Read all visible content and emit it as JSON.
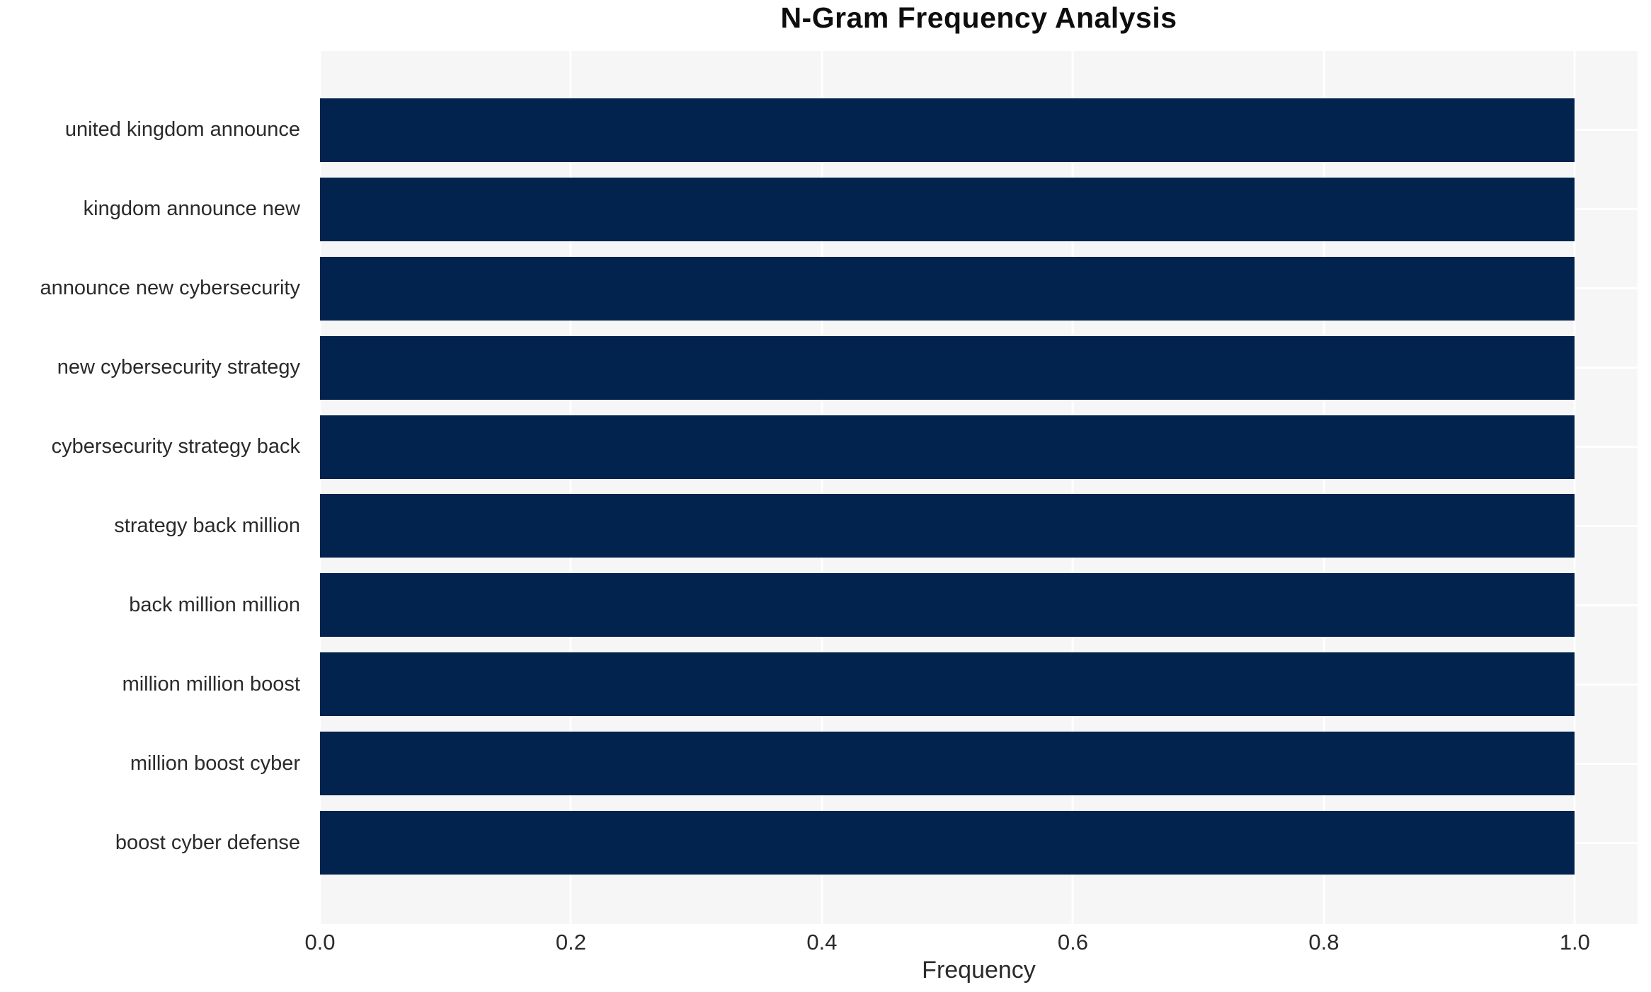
{
  "chart_data": {
    "type": "bar",
    "orientation": "horizontal",
    "title": "N-Gram Frequency Analysis",
    "xlabel": "Frequency",
    "ylabel": "",
    "categories": [
      "united kingdom announce",
      "kingdom announce new",
      "announce new cybersecurity",
      "new cybersecurity strategy",
      "cybersecurity strategy back",
      "strategy back million",
      "back million million",
      "million million boost",
      "million boost cyber",
      "boost cyber defense"
    ],
    "values": [
      1.0,
      1.0,
      1.0,
      1.0,
      1.0,
      1.0,
      1.0,
      1.0,
      1.0,
      1.0
    ],
    "xtick_labels": [
      "0.0",
      "0.2",
      "0.4",
      "0.6",
      "0.8",
      "1.0"
    ],
    "xtick_values": [
      0.0,
      0.2,
      0.4,
      0.6,
      0.8,
      1.0
    ],
    "xlim": [
      0,
      1.05
    ],
    "grid": true,
    "legend_visible": false,
    "colors": {
      "bar": "#02234d",
      "plot_background": "#f6f6f7",
      "figure_background": "#ffffff",
      "gridline": "#ffffff",
      "tick_label": "#2a2a2a",
      "title": "#0e0e0e"
    }
  }
}
